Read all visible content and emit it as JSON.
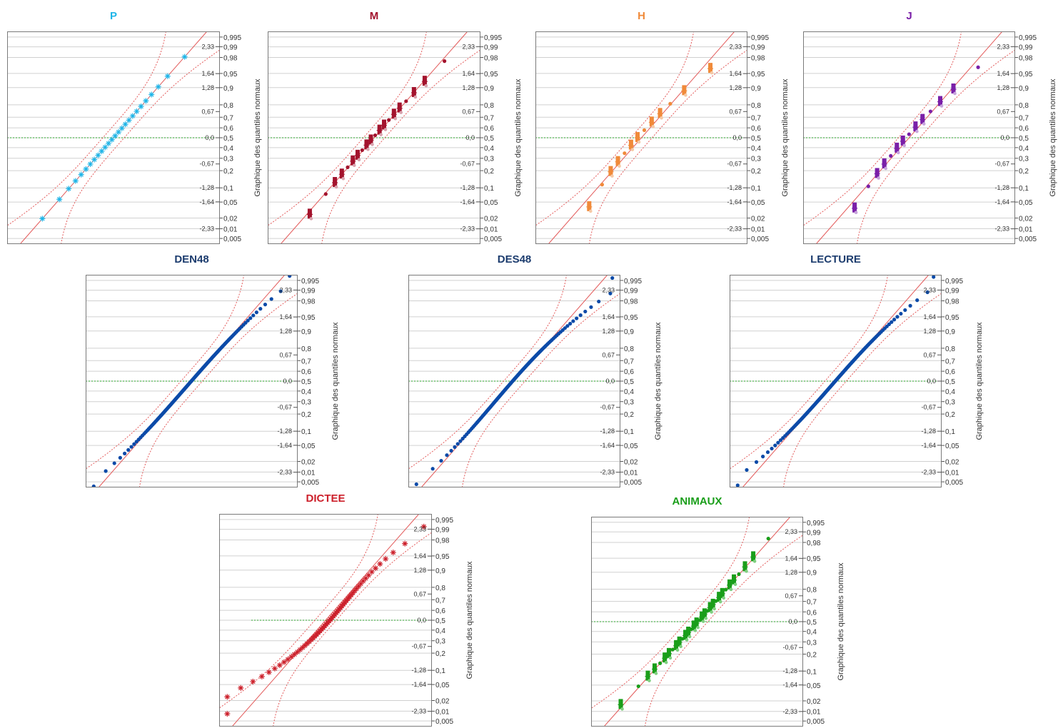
{
  "axis": {
    "label": "Graphique des quantiles normaux",
    "prob_ticks": [
      {
        "label": "0,995",
        "p": 0.995
      },
      {
        "label": "0,99",
        "p": 0.99
      },
      {
        "label": "0,98",
        "p": 0.98
      },
      {
        "label": "0,95",
        "p": 0.95
      },
      {
        "label": "0,9",
        "p": 0.9
      },
      {
        "label": "0,8",
        "p": 0.8
      },
      {
        "label": "0,7",
        "p": 0.7
      },
      {
        "label": "0,6",
        "p": 0.6
      },
      {
        "label": "0,5",
        "p": 0.5
      },
      {
        "label": "0,4",
        "p": 0.4
      },
      {
        "label": "0,3",
        "p": 0.3
      },
      {
        "label": "0,2",
        "p": 0.2
      },
      {
        "label": "0,1",
        "p": 0.1
      },
      {
        "label": "0,05",
        "p": 0.05
      },
      {
        "label": "0,02",
        "p": 0.02
      },
      {
        "label": "0,01",
        "p": 0.01
      },
      {
        "label": "0,005",
        "p": 0.005
      }
    ],
    "z_ticks": [
      {
        "label": "2,33",
        "z": 2.33
      },
      {
        "label": "1,64",
        "z": 1.64
      },
      {
        "label": "1,28",
        "z": 1.28
      },
      {
        "label": "0,67",
        "z": 0.67
      },
      {
        "label": "0,0",
        "z": 0.0
      },
      {
        "label": "-0,67",
        "z": -0.67
      },
      {
        "label": "-1,28",
        "z": -1.28
      },
      {
        "label": "-1,64",
        "z": -1.64
      },
      {
        "label": "-2,33",
        "z": -2.33
      }
    ]
  },
  "panels": [
    {
      "id": "P",
      "title": "P",
      "color": "#1fb5e8",
      "light": "#a9dcf2",
      "marker": "star",
      "n": 26,
      "skew": 0.0,
      "heavy": 0.0
    },
    {
      "id": "M",
      "title": "M",
      "color": "#a3132d",
      "light": "#d9a3ae",
      "marker": "mixed",
      "n": 20,
      "skew": 0.15,
      "heavy": 0.0
    },
    {
      "id": "H",
      "title": "H",
      "color": "#f08a3a",
      "light": "#f6c9a6",
      "marker": "mixed",
      "n": 13,
      "skew": 0.55,
      "heavy": 0.0
    },
    {
      "id": "J",
      "title": "J",
      "color": "#7a1fa8",
      "light": "#c7a3dc",
      "marker": "mixed",
      "n": 14,
      "skew": 0.45,
      "heavy": 0.0
    },
    {
      "id": "DEN48",
      "title": "DEN48",
      "color": "#0b4aa8",
      "light": "#0b4aa8",
      "marker": "dot",
      "n": 140,
      "skew": 0.05,
      "heavy": 0.1
    },
    {
      "id": "DES48",
      "title": "DES48",
      "color": "#0b4aa8",
      "light": "#0b4aa8",
      "marker": "dot",
      "n": 120,
      "skew": 0.25,
      "heavy": 0.15
    },
    {
      "id": "LECTURE",
      "title": "LECTURE",
      "color": "#0b4aa8",
      "light": "#0b4aa8",
      "marker": "dot",
      "n": 130,
      "skew": 0.05,
      "heavy": 0.15
    },
    {
      "id": "DICTEE",
      "title": "DICTEE",
      "color": "#cc1f2a",
      "light": "#e58b90",
      "marker": "star",
      "n": 60,
      "skew": -0.6,
      "heavy": 0.45
    },
    {
      "id": "ANIMAUX",
      "title": "ANIMAUX",
      "color": "#1a9e1a",
      "light": "#7fcf7f",
      "marker": "mixed",
      "n": 32,
      "skew": -0.1,
      "heavy": 0.0
    }
  ]
}
